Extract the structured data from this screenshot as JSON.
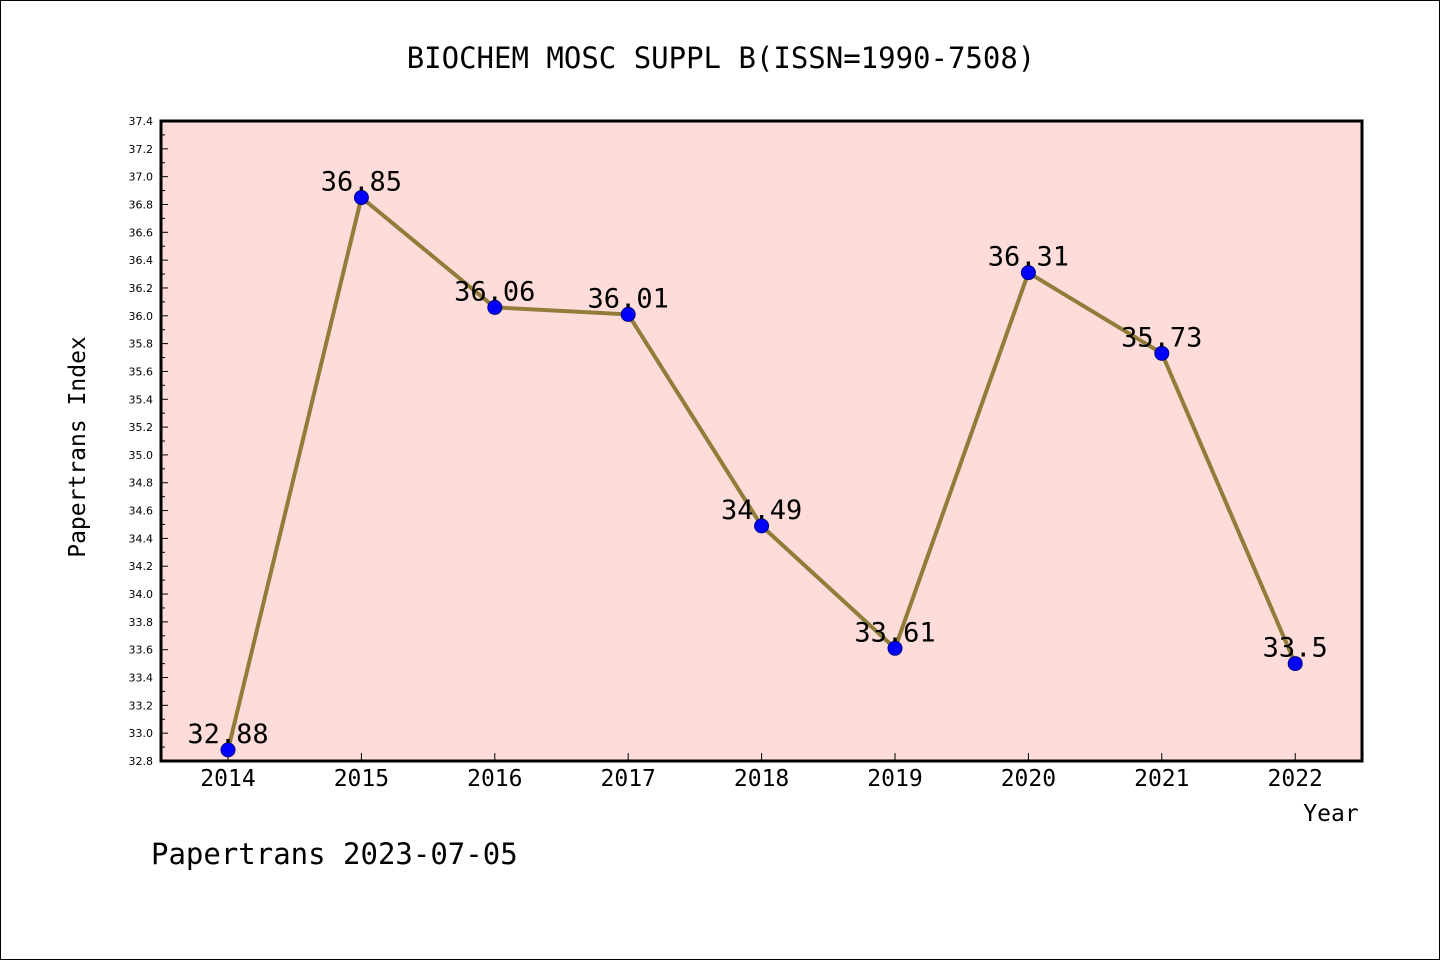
{
  "chart_data": {
    "type": "line",
    "title": "BIOCHEM MOSC SUPPL B(ISSN=1990-7508)",
    "xlabel": "Year",
    "ylabel": "Papertrans Index",
    "categories": [
      "2014",
      "2015",
      "2016",
      "2017",
      "2018",
      "2019",
      "2020",
      "2021",
      "2022"
    ],
    "series": [
      {
        "values": [
          32.88,
          36.85,
          36.06,
          36.01,
          34.49,
          33.61,
          36.31,
          35.73,
          33.5
        ],
        "labels": [
          "32.88",
          "36.85",
          "36.06",
          "36.01",
          "34.49",
          "33.61",
          "36.31",
          "35.73",
          "33.5"
        ]
      }
    ],
    "ylim": [
      32.8,
      37.4
    ],
    "y_ticks": [
      "32.8",
      "33.0",
      "33.2",
      "33.4",
      "33.6",
      "33.8",
      "34.0",
      "34.2",
      "34.4",
      "34.6",
      "34.8",
      "35.0",
      "35.2",
      "35.4",
      "35.6",
      "35.8",
      "36.0",
      "36.2",
      "36.4",
      "36.6",
      "36.8",
      "37.0",
      "37.2",
      "37.4"
    ],
    "grid": false,
    "colors": {
      "plot_background": "#fddcd9",
      "line": "#8f7d39",
      "marker_fill": "#0000ff",
      "marker_stroke": "#000080"
    }
  },
  "footer": {
    "text": "Papertrans 2023-07-05"
  }
}
